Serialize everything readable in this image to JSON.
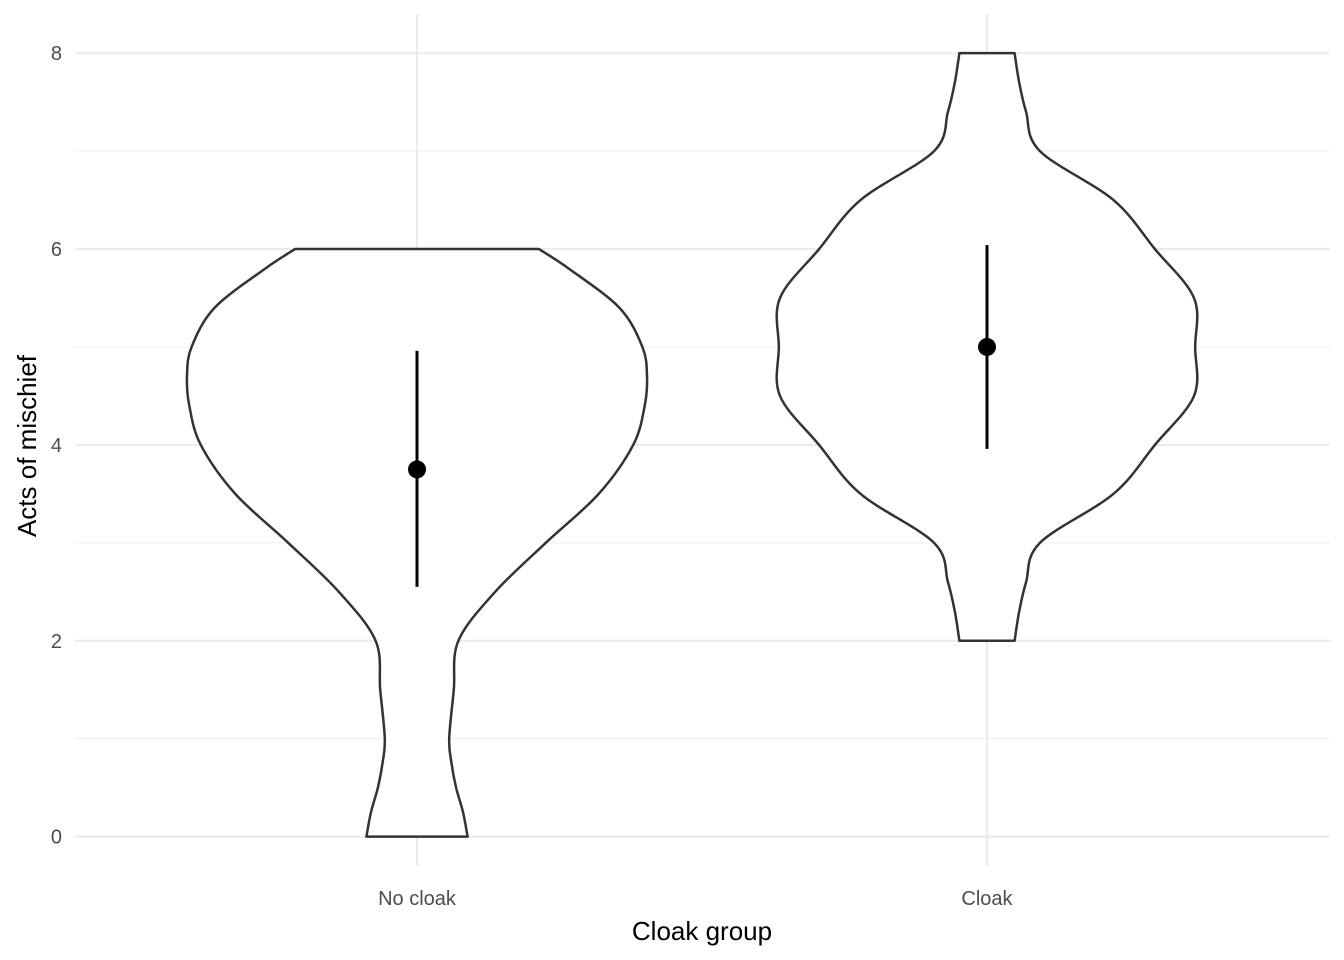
{
  "chart_data": {
    "type": "violin",
    "xlabel": "Cloak group",
    "ylabel": "Acts of mischief",
    "ylim": [
      -0.3,
      8.4
    ],
    "yticks": [
      0,
      2,
      4,
      6,
      8
    ],
    "grid": true,
    "categories": [
      "No cloak",
      "Cloak"
    ],
    "groups": [
      {
        "category": "No cloak",
        "mean": 3.75,
        "interval": [
          2.55,
          4.96
        ],
        "range": [
          0,
          6
        ],
        "density": [
          [
            0.0,
            0.22
          ],
          [
            0.25,
            0.2
          ],
          [
            0.5,
            0.17
          ],
          [
            0.75,
            0.15
          ],
          [
            1.0,
            0.14
          ],
          [
            1.5,
            0.16
          ],
          [
            2.0,
            0.18
          ],
          [
            2.5,
            0.34
          ],
          [
            3.0,
            0.56
          ],
          [
            3.5,
            0.79
          ],
          [
            4.0,
            0.94
          ],
          [
            4.4,
            0.99
          ],
          [
            4.7,
            1.0
          ],
          [
            5.0,
            0.98
          ],
          [
            5.4,
            0.88
          ],
          [
            5.8,
            0.66
          ],
          [
            6.0,
            0.53
          ]
        ]
      },
      {
        "category": "Cloak",
        "mean": 5.0,
        "interval": [
          3.96,
          6.04
        ],
        "range": [
          2,
          8
        ],
        "density": [
          [
            2.0,
            0.12
          ],
          [
            2.3,
            0.14
          ],
          [
            2.6,
            0.17
          ],
          [
            3.0,
            0.23
          ],
          [
            3.5,
            0.55
          ],
          [
            4.0,
            0.73
          ],
          [
            4.5,
            0.9
          ],
          [
            5.0,
            0.905
          ],
          [
            5.5,
            0.9
          ],
          [
            6.0,
            0.73
          ],
          [
            6.5,
            0.55
          ],
          [
            7.0,
            0.23
          ],
          [
            7.4,
            0.17
          ],
          [
            7.7,
            0.14
          ],
          [
            8.0,
            0.12
          ]
        ]
      }
    ]
  }
}
